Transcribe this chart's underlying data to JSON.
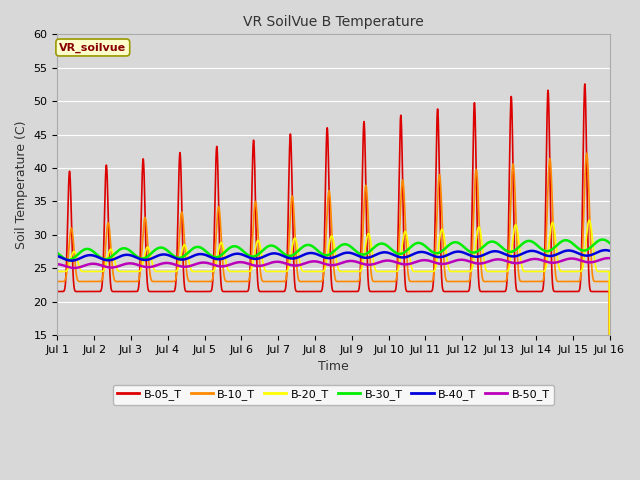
{
  "title": "VR SoilVue B Temperature",
  "xlabel": "Time",
  "ylabel": "Soil Temperature (C)",
  "ylim": [
    15,
    60
  ],
  "yticks": [
    15,
    20,
    25,
    30,
    35,
    40,
    45,
    50,
    55,
    60
  ],
  "xlim": [
    0,
    15
  ],
  "xtick_positions": [
    0,
    1,
    2,
    3,
    4,
    5,
    6,
    7,
    8,
    9,
    10,
    11,
    12,
    13,
    14,
    15
  ],
  "xtick_labels": [
    "Jul 1",
    "Jul 2",
    "Jul 3",
    "Jul 4",
    "Jul 5",
    "Jul 6",
    "Jul 7",
    "Jul 8",
    "Jul 9",
    "Jul 10",
    "Jul 11",
    "Jul 12",
    "Jul 13",
    "Jul 14",
    "Jul 15",
    "Jul 16"
  ],
  "bg_color": "#d8d8d8",
  "plot_bg_color": "#d8d8d8",
  "grid_color": "#ffffff",
  "legend_label": "VR_soilvue",
  "series_names": [
    "B-05_T",
    "B-10_T",
    "B-20_T",
    "B-30_T",
    "B-40_T",
    "B-50_T"
  ],
  "series_colors": [
    "#dd0000",
    "#ff8800",
    "#ffff00",
    "#00ee00",
    "#0000dd",
    "#bb00bb"
  ],
  "series_lw": [
    1.2,
    1.2,
    1.2,
    1.8,
    1.8,
    1.8
  ],
  "n_points": 3000,
  "days": 15
}
